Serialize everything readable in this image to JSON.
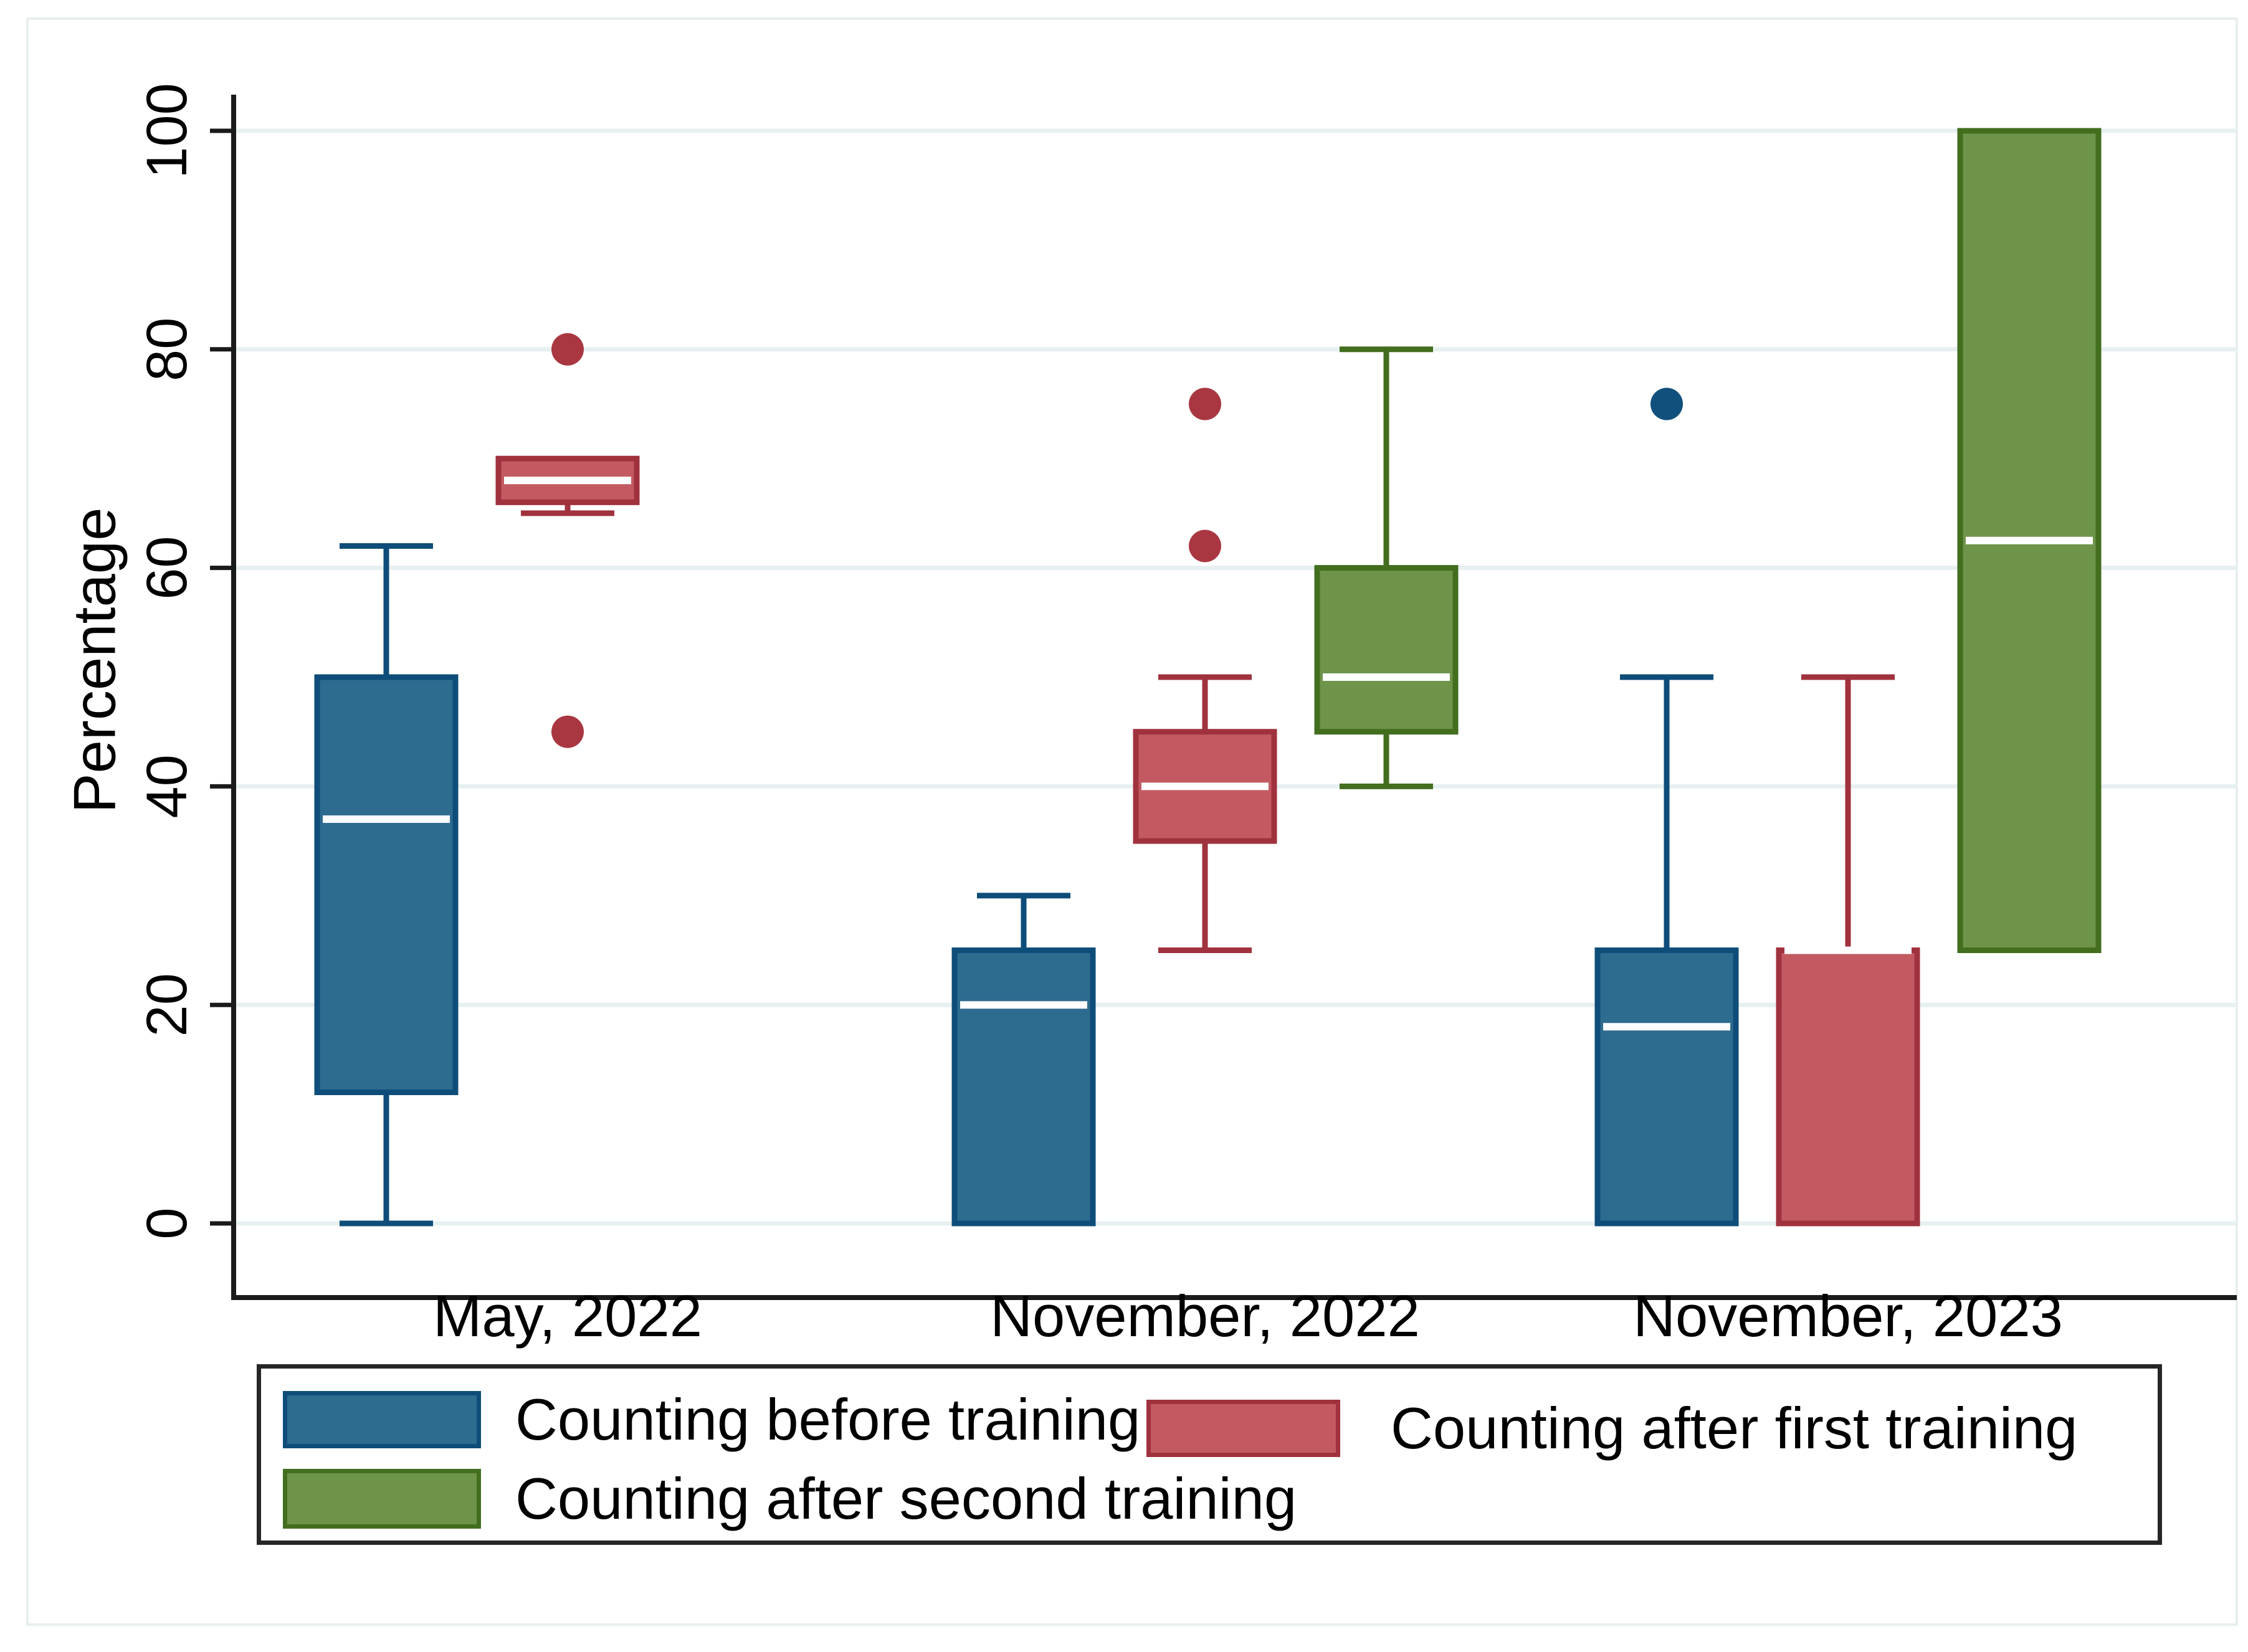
{
  "chart_data": {
    "type": "boxplot",
    "title": "",
    "ylabel": "Percentage",
    "xlabel": "",
    "ylim": [
      0,
      100
    ],
    "yticks": [
      0,
      20,
      40,
      60,
      80,
      100
    ],
    "ytick_labels": [
      "0",
      "20",
      "40",
      "60",
      "80",
      "100"
    ],
    "categories": [
      "May, 2022",
      "November, 2022",
      "November, 2023"
    ],
    "grid": true,
    "legend_position": "bottom",
    "series": [
      {
        "name": "Counting before training",
        "fill": "#2d6b8f",
        "stroke": "#0e4d79",
        "dot": "#11507c"
      },
      {
        "name": "Counting after first training",
        "fill": "#c35a62",
        "stroke": "#a0323e",
        "dot": "#a93741"
      },
      {
        "name": "Counting after second training",
        "fill": "#6e944a",
        "stroke": "#426e1e",
        "dot": "#426e1e"
      }
    ],
    "boxes": [
      {
        "category": "May, 2022",
        "series": 0,
        "low": 0,
        "q1": 12,
        "median": 37,
        "q3": 50,
        "high": 62,
        "outliers": []
      },
      {
        "category": "May, 2022",
        "series": 1,
        "low": 65,
        "q1": 66,
        "median": 68,
        "q3": 70,
        "high": 70,
        "outliers": [
          45,
          80
        ]
      },
      {
        "category": "November, 2022",
        "series": 0,
        "low": 0,
        "q1": 0,
        "median": 20,
        "q3": 25,
        "high": 30,
        "outliers": []
      },
      {
        "category": "November, 2022",
        "series": 1,
        "low": 25,
        "q1": 35,
        "median": 40,
        "q3": 45,
        "high": 50,
        "outliers": [
          62,
          75
        ]
      },
      {
        "category": "November, 2022",
        "series": 2,
        "low": 40,
        "q1": 45,
        "median": 50,
        "q3": 60,
        "high": 80,
        "outliers": []
      },
      {
        "category": "November, 2023",
        "series": 0,
        "low": 0,
        "q1": 0,
        "median": 18,
        "q3": 25,
        "high": 50,
        "outliers": [
          75
        ]
      },
      {
        "category": "November, 2023",
        "series": 1,
        "low": 0,
        "q1": 0,
        "median": 25,
        "q3": 25,
        "high": 50,
        "outliers": []
      },
      {
        "category": "November, 2023",
        "series": 2,
        "low": 25,
        "q1": 25,
        "median": 62.5,
        "q3": 100,
        "high": 100,
        "outliers": []
      }
    ],
    "colors": {
      "gridline": "#e7f0f1",
      "axis": "#1a1a1a",
      "median_line": "#ffffff",
      "text": "#000000",
      "background": "#ffffff",
      "legend_border": "#262626",
      "graphregion_border": "#e8eeee"
    }
  }
}
